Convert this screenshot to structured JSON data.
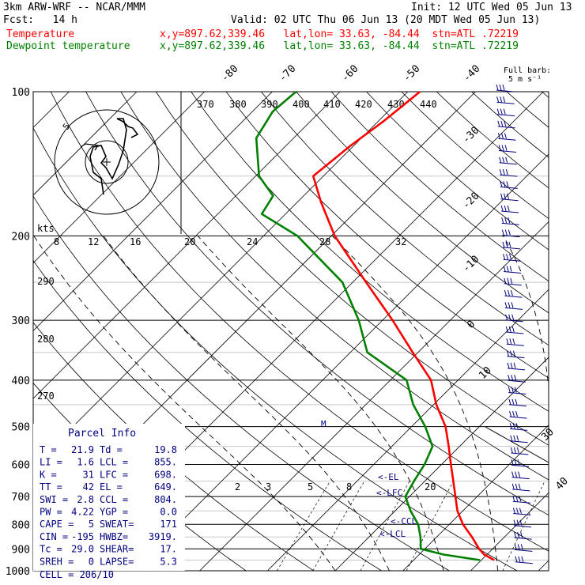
{
  "header": {
    "model": "3km ARW-WRF -- NCAR/MMM",
    "init": "Init: 12 UTC Wed 05 Jun 13",
    "fcst": "Fcst:   14 h",
    "valid": "Valid: 02 UTC Thu 06 Jun 13 (20 MDT Wed 05 Jun 13)",
    "temp_label": "Temperature",
    "dew_label": "Dewpoint temperature",
    "temp_info": "x,y=897.62,339.46   lat,lon= 33.63, -84.44  stn=ATL .72219",
    "dew_info": "x,y=897.62,339.46   lat,lon= 33.63, -84.44  stn=ATL .72219",
    "barb_key": "Full barb:",
    "barb_unit": "5 m s⁻¹"
  },
  "colors": {
    "temperature": "#ff0000",
    "dewpoint": "#008000",
    "barbs": "#000080",
    "parcel": "#000080"
  },
  "chart_data": {
    "type": "line",
    "chart_kind": "skew-T log-P",
    "y_scale": "log",
    "pressure_range": [
      1000,
      100
    ],
    "pressure_ticks": [
      "100",
      "200",
      "300",
      "400",
      "500",
      "600",
      "700",
      "800",
      "900",
      "1000"
    ],
    "isotherm_labels_top": [
      "-80",
      "-70",
      "-60",
      "-50",
      "-40"
    ],
    "isotherm_labels_right": [
      "-30",
      "-20",
      "-10",
      "0",
      "10"
    ],
    "theta_labels": [
      "370",
      "380",
      "390",
      "400",
      "410",
      "420",
      "430",
      "440"
    ],
    "theta_side_labels": [
      "290",
      "280",
      "270"
    ],
    "mixing_ratio_labels": [
      "2",
      "3",
      "5",
      "8",
      "20"
    ],
    "wind_axis_label": "kts",
    "wind_axis_ticks": [
      "8",
      "12",
      "16",
      "20",
      "24",
      "28",
      "32"
    ],
    "right_labels": [
      "30",
      "40"
    ],
    "levels_labels": [
      "EL",
      "LFC",
      "CCL",
      "LCL",
      "M"
    ],
    "series": [
      {
        "name": "Temperature",
        "color": "#ff0000",
        "points": [
          [
            950,
            21.9
          ],
          [
            925,
            19.6
          ],
          [
            900,
            18.0
          ],
          [
            850,
            15.2
          ],
          [
            800,
            12.0
          ],
          [
            750,
            9.2
          ],
          [
            700,
            6.8
          ],
          [
            650,
            4.2
          ],
          [
            600,
            1.4
          ],
          [
            550,
            -1.6
          ],
          [
            500,
            -5.0
          ],
          [
            450,
            -9.6
          ],
          [
            400,
            -14.0
          ],
          [
            350,
            -20.8
          ],
          [
            300,
            -28.5
          ],
          [
            250,
            -38.0
          ],
          [
            200,
            -49.5
          ],
          [
            170,
            -56.5
          ],
          [
            150,
            -61.5
          ],
          [
            130,
            -60.5
          ],
          [
            115,
            -59.2
          ],
          [
            100,
            -58.2
          ]
        ]
      },
      {
        "name": "Dewpoint temperature",
        "color": "#008000",
        "points": [
          [
            950,
            19.8
          ],
          [
            925,
            13.6
          ],
          [
            900,
            9.4
          ],
          [
            850,
            7.6
          ],
          [
            800,
            5.4
          ],
          [
            750,
            2.3
          ],
          [
            700,
            -0.6
          ],
          [
            650,
            -1.6
          ],
          [
            600,
            -2.5
          ],
          [
            550,
            -4.0
          ],
          [
            500,
            -8.0
          ],
          [
            450,
            -13.0
          ],
          [
            400,
            -17.6
          ],
          [
            350,
            -27.5
          ],
          [
            300,
            -33.5
          ],
          [
            250,
            -41.5
          ],
          [
            200,
            -55.0
          ],
          [
            180,
            -63.5
          ],
          [
            165,
            -64.5
          ],
          [
            150,
            -69.5
          ],
          [
            125,
            -75.5
          ],
          [
            110,
            -77.0
          ],
          [
            100,
            -76.5
          ]
        ]
      }
    ],
    "hodograph": {
      "ring_label": "5",
      "units": "m/s"
    },
    "parcel_info": {
      "title": "Parcel Info",
      "rows": [
        [
          "T  =",
          "21.9",
          "Td =",
          "19.8"
        ],
        [
          "LI =",
          "1.6",
          "LCL =",
          "855."
        ],
        [
          "K  =",
          "31",
          "LFC =",
          "698."
        ],
        [
          "TT =",
          "42",
          "EL  =",
          "649."
        ],
        [
          "SWI =",
          "2.8",
          "CCL =",
          "804."
        ],
        [
          "PW =",
          "4.22",
          "YGP =",
          "0.0"
        ],
        [
          "CAPE =",
          "5",
          "SWEAT=",
          "171"
        ],
        [
          "CIN =",
          "-195",
          "HWBZ=",
          "3919."
        ],
        [
          "Tc =",
          "29.0",
          "SHEAR=",
          "17."
        ],
        [
          "SREH =",
          "0",
          "LAPSE=",
          "5.3"
        ]
      ],
      "cell": "CELL = 206/10"
    }
  }
}
